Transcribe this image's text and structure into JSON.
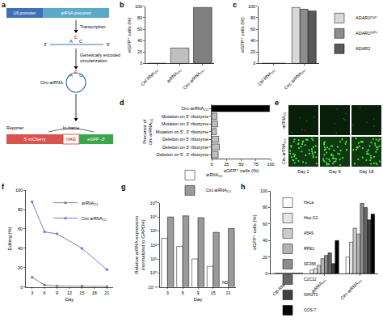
{
  "diagram": {
    "panel": "a",
    "promoter": "U6 promoter",
    "precursor": "arRNA precursor",
    "step1": "Transcription",
    "ends": [
      "3'",
      "5'"
    ],
    "bases": [
      "A",
      "C",
      "C"
    ],
    "step2": "Genetically encoded circularization",
    "product": "Circ-arRNA",
    "reporter": "Reporter",
    "frame": "In-frame",
    "reporter_parts": [
      "5'-mCherry",
      "UAG",
      "eGFP -3'"
    ]
  },
  "images": {
    "panel": "e",
    "rows": [
      "arRNA₁₅₁",
      "Circ-arRNA₁₅₁"
    ],
    "columns": [
      "Day 2",
      "Day 9",
      "Day 18"
    ]
  },
  "chart_data": [
    {
      "panel": "b",
      "type": "bar",
      "categories": [
        "Ctrl RNA₁₅₁",
        "arRNA₁₅₁",
        "Circ-arRNA₁₅₁"
      ],
      "values": [
        0.3,
        27,
        98
      ],
      "colors": [
        "#ffffff",
        "#bfbfbf",
        "#808080"
      ],
      "y_label": "eGFP⁺ cells (%)",
      "ylim": [
        0,
        100
      ],
      "yticks": [
        0,
        20,
        40,
        60,
        80,
        100
      ]
    },
    {
      "panel": "c",
      "type": "bar",
      "categories": [
        "Ctrl RNA₁₅₁",
        "Circ-arRNA₁₅₁"
      ],
      "series": [
        {
          "name": "ADAR1ᵖ¹¹⁰",
          "color": "#d9d9d9",
          "values": [
            0.3,
            98
          ]
        },
        {
          "name": "ADAR1ᵖ¹⁵⁰",
          "color": "#8c8c8c",
          "values": [
            0.3,
            95
          ]
        },
        {
          "name": "ADAR2",
          "color": "#595959",
          "values": [
            0.3,
            92
          ]
        }
      ],
      "y_label": "eGFP⁺ cells (%)",
      "ylim": [
        0,
        100
      ],
      "yticks": [
        0,
        20,
        40,
        60,
        80,
        100
      ],
      "legend": "right"
    },
    {
      "panel": "d",
      "type": "bar",
      "orientation": "horizontal",
      "categories": [
        "Circ-arRNA₁₅₁",
        "Mutation on 5' ribozyme",
        "Mutation on 3' ribozyme",
        "Mutation on 5', 3' ribozyme",
        "Deletion on 5' ribozyme",
        "Deletion on 3' ribozyme",
        "Deletion on 5', 3' ribozyme"
      ],
      "values": [
        98,
        9,
        10,
        8,
        12,
        13,
        11
      ],
      "colors": [
        "#000000",
        "#bfbfbf",
        "#bfbfbf",
        "#bfbfbf",
        "#bfbfbf",
        "#bfbfbf",
        "#bfbfbf"
      ],
      "x_label": "eGFP⁺ cells (%)",
      "y_label": "Precursor of circ-arRNA₁₅₁",
      "xlim": [
        0,
        100
      ],
      "xticks": [
        0,
        25,
        50,
        75,
        100
      ]
    },
    {
      "panel": "f",
      "type": "line",
      "x": [
        3,
        6,
        9,
        15,
        21
      ],
      "series": [
        {
          "name": "arRNA₁₅₁",
          "color": "#808080",
          "values": [
            10,
            2,
            1,
            0.8,
            0.5
          ]
        },
        {
          "name": "Circ-arRNA₁₅₁",
          "color": "#7a7ad6",
          "values": [
            88,
            57,
            55,
            40,
            18
          ]
        }
      ],
      "marker": "circle",
      "x_label": "Day",
      "y_label": "Editing (%)",
      "xlim": [
        1.5,
        22.5
      ],
      "xticks": [
        3,
        6,
        9,
        12,
        15,
        18,
        21
      ],
      "ylim": [
        0,
        100
      ],
      "yticks": [
        0,
        20,
        40,
        60,
        80,
        100
      ],
      "legend": "upper right"
    },
    {
      "panel": "g",
      "type": "bar",
      "log": "y",
      "categories": [
        "3",
        "6",
        "9",
        "15",
        "21"
      ],
      "series": [
        {
          "name": "arRNA₁₅₁",
          "color": "#ffffff",
          "values": [
            300,
            80,
            10,
            3,
            null
          ]
        },
        {
          "name": "Circ-arRNA₁₅₁",
          "color": "#9a9a9a",
          "values": [
            10000,
            12000,
            9000,
            800,
            1500
          ]
        }
      ],
      "x_label": "Day",
      "y_label": "Relative arRNA expression (normalized to GAPDH)",
      "ylim": [
        0.1,
        100000
      ],
      "yticks": [
        {
          "value": 0.1,
          "label": "10⁻¹"
        },
        {
          "value": 1,
          "label": "10⁰"
        },
        {
          "value": 10,
          "label": "10¹"
        },
        {
          "value": 100,
          "label": "10²"
        },
        {
          "value": 1000,
          "label": "10³"
        },
        {
          "value": 10000,
          "label": "10⁴"
        },
        {
          "value": 100000,
          "label": "10⁵"
        }
      ],
      "annotations": [
        {
          "category": "21",
          "series": "arRNA₁₅₁",
          "text": "ND"
        }
      ],
      "legend": "top"
    },
    {
      "panel": "h",
      "type": "bar",
      "categories": [
        "Ctrl RNA₁₅₁",
        "arRNA₁₅₁",
        "Circ-arRNA₁₅₁"
      ],
      "series": [
        {
          "name": "HeLa",
          "color": "#ffffff",
          "values": [
            0.3,
            4,
            20
          ]
        },
        {
          "name": "Hep G2",
          "color": "#e6e6e6",
          "values": [
            0.3,
            6,
            38
          ]
        },
        {
          "name": "A549",
          "color": "#cccccc",
          "values": [
            0.3,
            10,
            55
          ]
        },
        {
          "name": "RPE1",
          "color": "#b3b3b3",
          "values": [
            0.3,
            18,
            48
          ]
        },
        {
          "name": "SF268",
          "color": "#8c8c8c",
          "values": [
            0.3,
            22,
            85
          ]
        },
        {
          "name": "C2C12",
          "color": "#666666",
          "values": [
            0.3,
            25,
            80
          ]
        },
        {
          "name": "NIH3T3",
          "color": "#404040",
          "values": [
            0.3,
            12,
            65
          ]
        },
        {
          "name": "COS-7",
          "color": "#000000",
          "values": [
            0.3,
            40,
            72
          ]
        }
      ],
      "y_label": "eGFP⁺ cells (%)",
      "ylim": [
        0,
        100
      ],
      "yticks": [
        0,
        20,
        40,
        60,
        80,
        100
      ],
      "legend": "upper left"
    }
  ]
}
